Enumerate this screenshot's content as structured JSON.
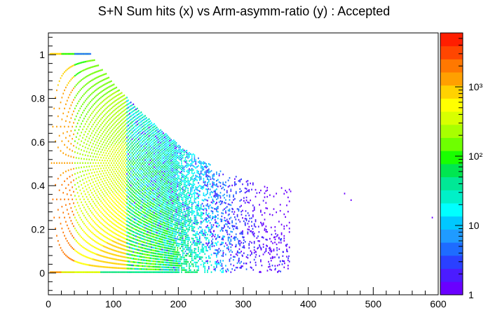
{
  "chart_data": {
    "type": "heatmap",
    "title": "S+N Sum hits (x) vs Arm-asymm-ratio (y) : Accepted",
    "xlabel": "",
    "ylabel": "",
    "xlim": [
      0,
      600
    ],
    "ylim": [
      -0.1,
      1.1
    ],
    "x_ticks": [
      "0",
      "100",
      "200",
      "300",
      "400",
      "500",
      "600"
    ],
    "y_ticks": [
      "0",
      "0.2",
      "0.4",
      "0.6",
      "0.8",
      "1"
    ],
    "z_scale": "log",
    "zlim": [
      1,
      6000
    ],
    "colorbar_labels": [
      {
        "value": 1,
        "text": "1"
      },
      {
        "value": 10,
        "text": "10"
      },
      {
        "value": 100,
        "text": "10²"
      },
      {
        "value": 1000,
        "text": "10³"
      }
    ],
    "palette": [
      "#6a00ff",
      "#4b1cff",
      "#2a40ff",
      "#1e6cff",
      "#1f9bff",
      "#00c8ff",
      "#00ffff",
      "#00f0c8",
      "#00e896",
      "#00e650",
      "#19ff00",
      "#6eff00",
      "#a8ff00",
      "#d8ff00",
      "#ffff00",
      "#ffd200",
      "#ffa000",
      "#ff7800",
      "#ff4600",
      "#ff1e00"
    ],
    "grid": false,
    "legend": "colorbar-right",
    "features": {
      "y_at_1_band": {
        "x_range": [
          0,
          65
        ],
        "note": "row of bins at ratio = 1"
      },
      "y_at_0_band": {
        "x_range": [
          0,
          200
        ],
        "note": "row of bins at ratio = 0"
      },
      "outliers": [
        {
          "x": 455,
          "y": 0.36
        },
        {
          "x": 465,
          "y": 0.33
        },
        {
          "x": 590,
          "y": 0.25
        },
        {
          "x": 368,
          "y": 0.03
        },
        {
          "x": 372,
          "y": 0.37
        }
      ]
    }
  }
}
